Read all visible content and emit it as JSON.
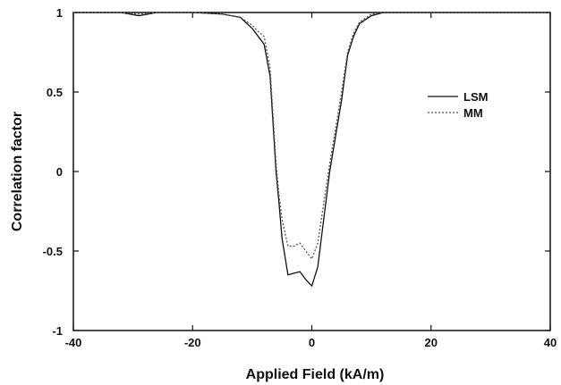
{
  "chart_data": {
    "type": "line",
    "title": "",
    "xlabel": "Applied Field (kA/m)",
    "ylabel": "Correlation factor",
    "xlim": [
      -40,
      40
    ],
    "ylim": [
      -1,
      1
    ],
    "x_ticks": [
      "-40",
      "-20",
      "0",
      "20",
      "40"
    ],
    "y_ticks": [
      "-1",
      "-0.5",
      "0",
      "0.5",
      "1"
    ],
    "grid": false,
    "legend_position": "right",
    "series": [
      {
        "name": "LSM",
        "style": "solid",
        "color": "#111111",
        "x": [
          -40,
          -32,
          -29,
          -26,
          -20,
          -15,
          -12,
          -10,
          -9,
          -8,
          -7,
          -6.5,
          -6,
          -5.5,
          -5,
          -4,
          -3,
          -2,
          -1,
          0,
          1,
          2,
          3,
          5,
          6,
          7,
          8,
          10,
          12,
          20,
          30,
          40
        ],
        "y": [
          1.0,
          1.0,
          0.98,
          1.0,
          1.0,
          0.99,
          0.97,
          0.9,
          0.85,
          0.8,
          0.6,
          0.3,
          0.0,
          -0.2,
          -0.42,
          -0.65,
          -0.64,
          -0.63,
          -0.68,
          -0.72,
          -0.6,
          -0.3,
          0.0,
          0.45,
          0.73,
          0.85,
          0.93,
          0.98,
          1.0,
          1.0,
          1.0,
          1.0
        ]
      },
      {
        "name": "MM",
        "style": "dashed",
        "color": "#555555",
        "x": [
          -40,
          -32,
          -29,
          -26,
          -20,
          -15,
          -12,
          -10,
          -9,
          -8,
          -7,
          -6.5,
          -6,
          -5.5,
          -5,
          -4,
          -3,
          -2,
          -1,
          0,
          1,
          2,
          3,
          5,
          6,
          7,
          8,
          10,
          12,
          20,
          30,
          40
        ],
        "y": [
          1.0,
          1.0,
          0.99,
          1.0,
          1.0,
          0.99,
          0.97,
          0.92,
          0.88,
          0.85,
          0.65,
          0.35,
          0.05,
          -0.15,
          -0.3,
          -0.47,
          -0.47,
          -0.45,
          -0.5,
          -0.55,
          -0.45,
          -0.2,
          0.05,
          0.5,
          0.75,
          0.87,
          0.94,
          0.99,
          1.0,
          1.0,
          1.0,
          1.0
        ]
      }
    ]
  }
}
